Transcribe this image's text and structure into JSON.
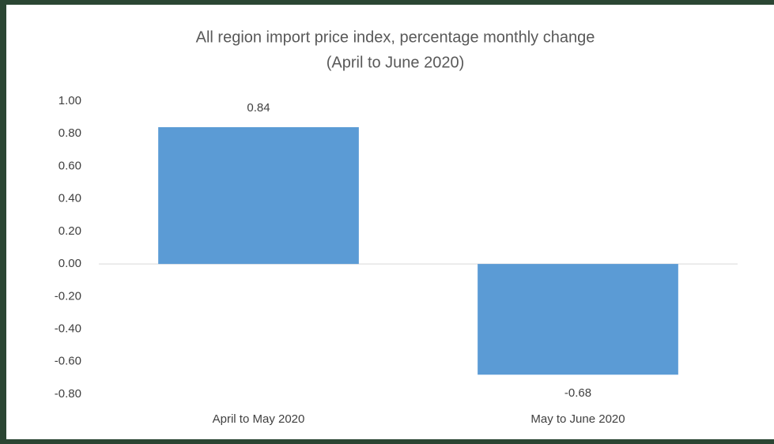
{
  "chart_data": {
    "type": "bar",
    "title": "All region import price index, percentage monthly change",
    "subtitle": "(April to June 2020)",
    "categories": [
      "April to May 2020",
      "May to June 2020"
    ],
    "values": [
      0.84,
      -0.68
    ],
    "color": "#5b9bd5",
    "ylim": [
      -0.8,
      1.0
    ],
    "yticks": [
      {
        "value": -0.8,
        "label": "-0.80"
      },
      {
        "value": -0.6,
        "label": "-0.60"
      },
      {
        "value": -0.4,
        "label": "-0.40"
      },
      {
        "value": -0.2,
        "label": "-0.20"
      },
      {
        "value": 0,
        "label": "0.00"
      },
      {
        "value": 0.2,
        "label": "0.20"
      },
      {
        "value": 0.4,
        "label": "0.40"
      },
      {
        "value": 0.6,
        "label": "0.60"
      },
      {
        "value": 0.8,
        "label": "0.80"
      },
      {
        "value": 1.0,
        "label": "1.00"
      }
    ],
    "grid": false
  }
}
